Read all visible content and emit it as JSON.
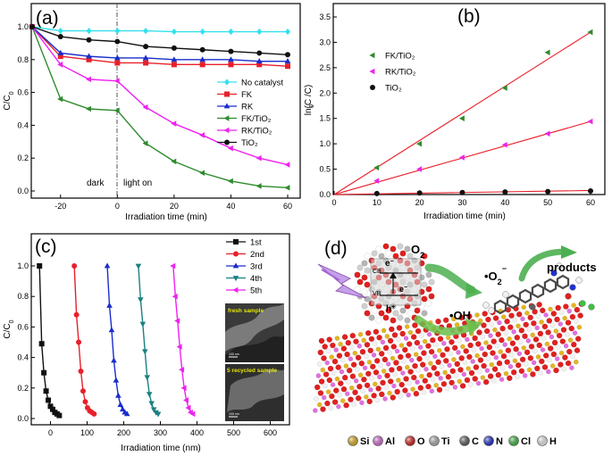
{
  "chart_data": [
    {
      "panel": "(a)",
      "type": "line",
      "xlabel": "Irradiation time (min)",
      "ylabel": "C/C",
      "ylabel_sub": "0",
      "x": [
        -30,
        -20,
        -10,
        0,
        10,
        20,
        30,
        40,
        50,
        60
      ],
      "xlim": [
        -30,
        60
      ],
      "ylim": [
        0.0,
        1.0
      ],
      "xticks": [
        -20,
        0,
        20,
        40,
        60
      ],
      "yticks": [
        "0.0",
        "0.2",
        "0.4",
        "0.6",
        "0.8",
        "1.0"
      ],
      "annotations": {
        "dark": "dark",
        "light": "light on"
      },
      "series": [
        {
          "name": "No catalyst",
          "color": "#33e0ee",
          "marker": "diamond",
          "values": [
            1.0,
            0.975,
            0.975,
            0.975,
            0.975,
            0.97,
            0.97,
            0.97,
            0.97,
            0.97
          ]
        },
        {
          "name": "FK",
          "color": "#e8202a",
          "marker": "square",
          "values": [
            1.0,
            0.82,
            0.8,
            0.78,
            0.78,
            0.77,
            0.77,
            0.77,
            0.77,
            0.76
          ]
        },
        {
          "name": "RK",
          "color": "#1a2dcc",
          "marker": "triangle-up",
          "values": [
            1.0,
            0.84,
            0.82,
            0.81,
            0.81,
            0.8,
            0.8,
            0.8,
            0.79,
            0.79
          ]
        },
        {
          "name": "FK/TiO₂",
          "color": "#2e8b2e",
          "marker": "triangle-left",
          "values": [
            1.0,
            0.56,
            0.5,
            0.49,
            0.29,
            0.18,
            0.11,
            0.06,
            0.03,
            0.02
          ]
        },
        {
          "name": "RK/TiO₂",
          "color": "#ee22ee",
          "marker": "triangle-left",
          "values": [
            1.0,
            0.77,
            0.68,
            0.67,
            0.51,
            0.41,
            0.34,
            0.26,
            0.2,
            0.16
          ]
        },
        {
          "name": "TiO₂",
          "color": "#111111",
          "marker": "circle",
          "values": [
            1.0,
            0.94,
            0.92,
            0.91,
            0.88,
            0.87,
            0.86,
            0.85,
            0.84,
            0.83
          ]
        }
      ]
    },
    {
      "panel": "(b)",
      "type": "scatter",
      "xlabel": "Irradiation time (min)",
      "ylabel": "ln(C /C)",
      "ylabel_sub": "0",
      "x": [
        10,
        20,
        30,
        40,
        50,
        60
      ],
      "xlim": [
        0,
        60
      ],
      "ylim": [
        0.0,
        3.5
      ],
      "xticks": [
        0,
        10,
        20,
        30,
        40,
        50,
        60
      ],
      "yticks": [
        "0.0",
        "0.5",
        "1.0",
        "1.5",
        "2.0",
        "2.5",
        "3.0",
        "3.5"
      ],
      "fit_color": "#e8202a",
      "series": [
        {
          "name": "FK/TiO₂",
          "color": "#2e8b2e",
          "marker": "triangle-left",
          "values": [
            0.53,
            1.0,
            1.5,
            2.1,
            2.8,
            3.2
          ],
          "fit": [
            0.0,
            3.2
          ]
        },
        {
          "name": "RK/TiO₂",
          "color": "#ee22ee",
          "marker": "triangle-left",
          "values": [
            0.27,
            0.5,
            0.73,
            0.98,
            1.2,
            1.44
          ],
          "fit": [
            0.0,
            1.44
          ]
        },
        {
          "name": "TiO₂",
          "color": "#111111",
          "marker": "circle",
          "values": [
            0.02,
            0.03,
            0.04,
            0.05,
            0.06,
            0.07
          ],
          "fit": [
            0.0,
            0.08
          ]
        }
      ]
    },
    {
      "panel": "(c)",
      "type": "line",
      "xlabel": "Irradiation time (nm)",
      "ylabel": "C/C",
      "ylabel_sub": "0",
      "xlim": [
        -50,
        650
      ],
      "ylim": [
        0.0,
        1.0
      ],
      "xticks": [
        0,
        100,
        200,
        300,
        400,
        500,
        600
      ],
      "yticks": [
        "0.0",
        "0.2",
        "0.4",
        "0.6",
        "0.8",
        "1.0"
      ],
      "rel_x": [
        -30,
        -20,
        -10,
        0,
        10,
        20,
        30,
        40,
        50,
        60
      ],
      "series": [
        {
          "name": "1st",
          "color": "#111111",
          "marker": "square",
          "offset": 0,
          "values": [
            1.0,
            0.49,
            0.3,
            0.18,
            0.12,
            0.08,
            0.06,
            0.04,
            0.03,
            0.02
          ]
        },
        {
          "name": "2nd",
          "color": "#e8202a",
          "marker": "circle",
          "offset": 95,
          "values": [
            1.0,
            0.68,
            0.5,
            0.31,
            0.18,
            0.11,
            0.07,
            0.05,
            0.04,
            0.03
          ]
        },
        {
          "name": "3rd",
          "color": "#1a2dcc",
          "marker": "triangle-up",
          "offset": 185,
          "values": [
            1.0,
            0.74,
            0.58,
            0.38,
            0.25,
            0.15,
            0.09,
            0.06,
            0.04,
            0.03
          ]
        },
        {
          "name": "4th",
          "color": "#1a8080",
          "marker": "triangle-down",
          "offset": 270,
          "values": [
            1.0,
            0.78,
            0.62,
            0.44,
            0.27,
            0.16,
            0.1,
            0.06,
            0.04,
            0.03
          ]
        },
        {
          "name": "5th",
          "color": "#ee22ee",
          "marker": "triangle-left",
          "offset": 365,
          "values": [
            1.0,
            0.8,
            0.64,
            0.47,
            0.32,
            0.2,
            0.12,
            0.07,
            0.04,
            0.03
          ]
        }
      ],
      "insets": [
        "fresh sample",
        "5 recycled sample"
      ],
      "scalebar": "100 nm"
    }
  ],
  "schematic": {
    "panel": "(d)",
    "o2": "O",
    "o2_sub": "2",
    "superoxide": "•O",
    "superoxide_sub": "2",
    "superoxide_sup": "−",
    "hydroxyl": "•OH",
    "products": "products",
    "cb": "CB",
    "vb": "VB",
    "electron": "e",
    "electron2": "e",
    "hole": "h",
    "minus": "−",
    "plus": "+",
    "legend": [
      {
        "symbol": "Si",
        "color": "#e3b520"
      },
      {
        "symbol": "Al",
        "color": "#e070e0"
      },
      {
        "symbol": "O",
        "color": "#e02020"
      },
      {
        "symbol": "Ti",
        "color": "#b4b4b4"
      },
      {
        "symbol": "C",
        "color": "#606060"
      },
      {
        "symbol": "N",
        "color": "#2030d0"
      },
      {
        "symbol": "Cl",
        "color": "#40c040"
      },
      {
        "symbol": "H",
        "color": "#f2f2f2"
      }
    ]
  }
}
